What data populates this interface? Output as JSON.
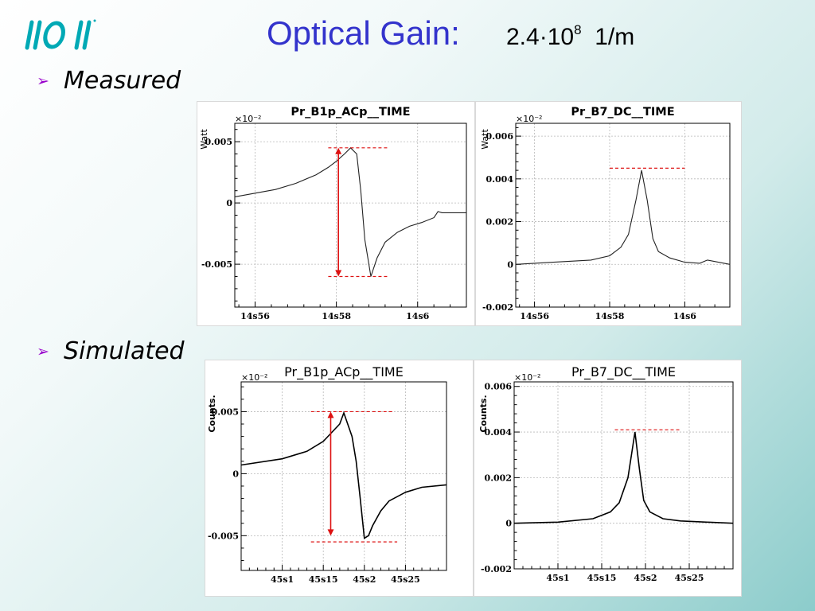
{
  "slide": {
    "title": "Optical Gain:",
    "gain_value": "2.4·10",
    "gain_exponent": "8",
    "gain_unit": "1/m",
    "bullets": [
      "Measured",
      "Simulated"
    ]
  },
  "colors": {
    "title": "#3333cc",
    "bullet": "#9900cc",
    "reference_lines": "#dd1111",
    "trace": "#000000"
  },
  "chart_data": [
    {
      "type": "line",
      "panel": "measured",
      "title": "Pr_B1p_ACp__TIME",
      "ylabel": "Watt",
      "y_multiplier": "×10⁻²",
      "xlim": [
        55.5,
        61.2
      ],
      "ylim": [
        -0.0085,
        0.0065
      ],
      "x_ticks": [
        56,
        58,
        60
      ],
      "x_tick_labels": [
        "14s56",
        "14s58",
        "14s6"
      ],
      "y_ticks": [
        0.005,
        0,
        -0.005
      ],
      "y_tick_labels": [
        "0.005",
        "0",
        "-0.005"
      ],
      "series": [
        {
          "x": [
            55.5,
            56.5,
            57.0,
            57.5,
            57.8,
            58.0,
            58.2,
            58.35,
            58.5,
            58.6,
            58.7,
            58.85,
            59.0,
            59.2,
            59.5,
            59.8,
            60.1,
            60.4,
            60.5,
            60.6,
            61.2
          ],
          "y": [
            0.0005,
            0.0011,
            0.0016,
            0.0023,
            0.0029,
            0.0034,
            0.004,
            0.0045,
            0.004,
            0.001,
            -0.003,
            -0.006,
            -0.0045,
            -0.0032,
            -0.0024,
            -0.0019,
            -0.0016,
            -0.0012,
            -0.0007,
            -0.0008,
            -0.0008
          ]
        }
      ],
      "reference_lines": [
        {
          "y": 0.0045,
          "x": [
            57.8,
            59.3
          ]
        },
        {
          "y": -0.006,
          "x": [
            57.8,
            59.3
          ]
        }
      ],
      "amplitude_arrow": {
        "x": 58.05,
        "y": [
          0.0045,
          -0.006
        ]
      }
    },
    {
      "type": "line",
      "panel": "measured",
      "title": "Pr_B7_DC__TIME",
      "ylabel": "Watt",
      "y_multiplier": "×10⁻²",
      "xlim": [
        55.5,
        61.2
      ],
      "ylim": [
        -0.002,
        0.0066
      ],
      "x_ticks": [
        56,
        58,
        60
      ],
      "x_tick_labels": [
        "14s56",
        "14s58",
        "14s6"
      ],
      "y_ticks": [
        0.006,
        0.004,
        0.002,
        0,
        -0.002
      ],
      "y_tick_labels": [
        "0.006",
        "0.004",
        "0.002",
        "0",
        "-0.002"
      ],
      "series": [
        {
          "x": [
            55.5,
            56.5,
            57.5,
            58.0,
            58.3,
            58.5,
            58.7,
            58.85,
            59.0,
            59.15,
            59.3,
            59.6,
            60.0,
            60.4,
            60.6,
            61.2
          ],
          "y": [
            0.0,
            0.0001,
            0.0002,
            0.0004,
            0.0008,
            0.0014,
            0.003,
            0.0044,
            0.003,
            0.0012,
            0.0006,
            0.0003,
            0.0001,
            5e-05,
            0.0002,
            0.0
          ]
        }
      ],
      "reference_lines": [
        {
          "y": 0.0045,
          "x": [
            58.0,
            60.0
          ]
        }
      ]
    },
    {
      "type": "line",
      "panel": "simulated",
      "title": "Pr_B1p_ACp__TIME",
      "ylabel": "Counts.",
      "y_multiplier": "×10⁻²",
      "xlim": [
        0.4505,
        0.453
      ],
      "ylim": [
        -0.0078,
        0.0074
      ],
      "x_ticks": [
        0.451,
        0.4515,
        0.452,
        0.4525
      ],
      "x_tick_labels": [
        "45s1",
        "45s15",
        "45s2",
        "45s25"
      ],
      "y_ticks": [
        0.005,
        0,
        -0.005
      ],
      "y_tick_labels": [
        "0.005",
        "0",
        "-0.005"
      ],
      "series": [
        {
          "x": [
            0.4505,
            0.451,
            0.4513,
            0.4515,
            0.4517,
            0.45175,
            0.45185,
            0.4519,
            0.45195,
            0.452,
            0.45205,
            0.4521,
            0.4522,
            0.4523,
            0.4525,
            0.4527,
            0.453
          ],
          "y": [
            0.0007,
            0.0012,
            0.0018,
            0.0026,
            0.004,
            0.0049,
            0.003,
            0.001,
            -0.002,
            -0.0052,
            -0.005,
            -0.0042,
            -0.003,
            -0.0022,
            -0.0015,
            -0.0011,
            -0.0009
          ]
        }
      ],
      "reference_lines": [
        {
          "y": 0.005,
          "x": [
            0.45135,
            0.45235
          ]
        },
        {
          "y": -0.0055,
          "x": [
            0.45135,
            0.4524
          ]
        }
      ],
      "amplitude_arrow": {
        "x": 0.45159,
        "y": [
          0.005,
          -0.005
        ]
      }
    },
    {
      "type": "line",
      "panel": "simulated",
      "title": "Pr_B7_DC__TIME",
      "ylabel": "Counts.",
      "y_multiplier": "×10⁻²",
      "xlim": [
        0.4505,
        0.453
      ],
      "ylim": [
        -0.002,
        0.0062
      ],
      "x_ticks": [
        0.451,
        0.4515,
        0.452,
        0.4525
      ],
      "x_tick_labels": [
        "45s1",
        "45s15",
        "45s2",
        "45s25"
      ],
      "y_ticks": [
        0.006,
        0.004,
        0.002,
        0,
        -0.002
      ],
      "y_tick_labels": [
        "0.006",
        "0.004",
        "0.002",
        "0",
        "-0.002"
      ],
      "series": [
        {
          "x": [
            0.4505,
            0.451,
            0.4514,
            0.4516,
            0.4517,
            0.4518,
            0.45188,
            0.45193,
            0.45198,
            0.45205,
            0.4522,
            0.4524,
            0.4527,
            0.453
          ],
          "y": [
            0.0,
            5e-05,
            0.0002,
            0.0005,
            0.0009,
            0.002,
            0.004,
            0.0024,
            0.001,
            0.0005,
            0.0002,
            0.0001,
            5e-05,
            0.0
          ]
        }
      ],
      "reference_lines": [
        {
          "y": 0.0041,
          "x": [
            0.45165,
            0.4524
          ]
        }
      ]
    }
  ]
}
